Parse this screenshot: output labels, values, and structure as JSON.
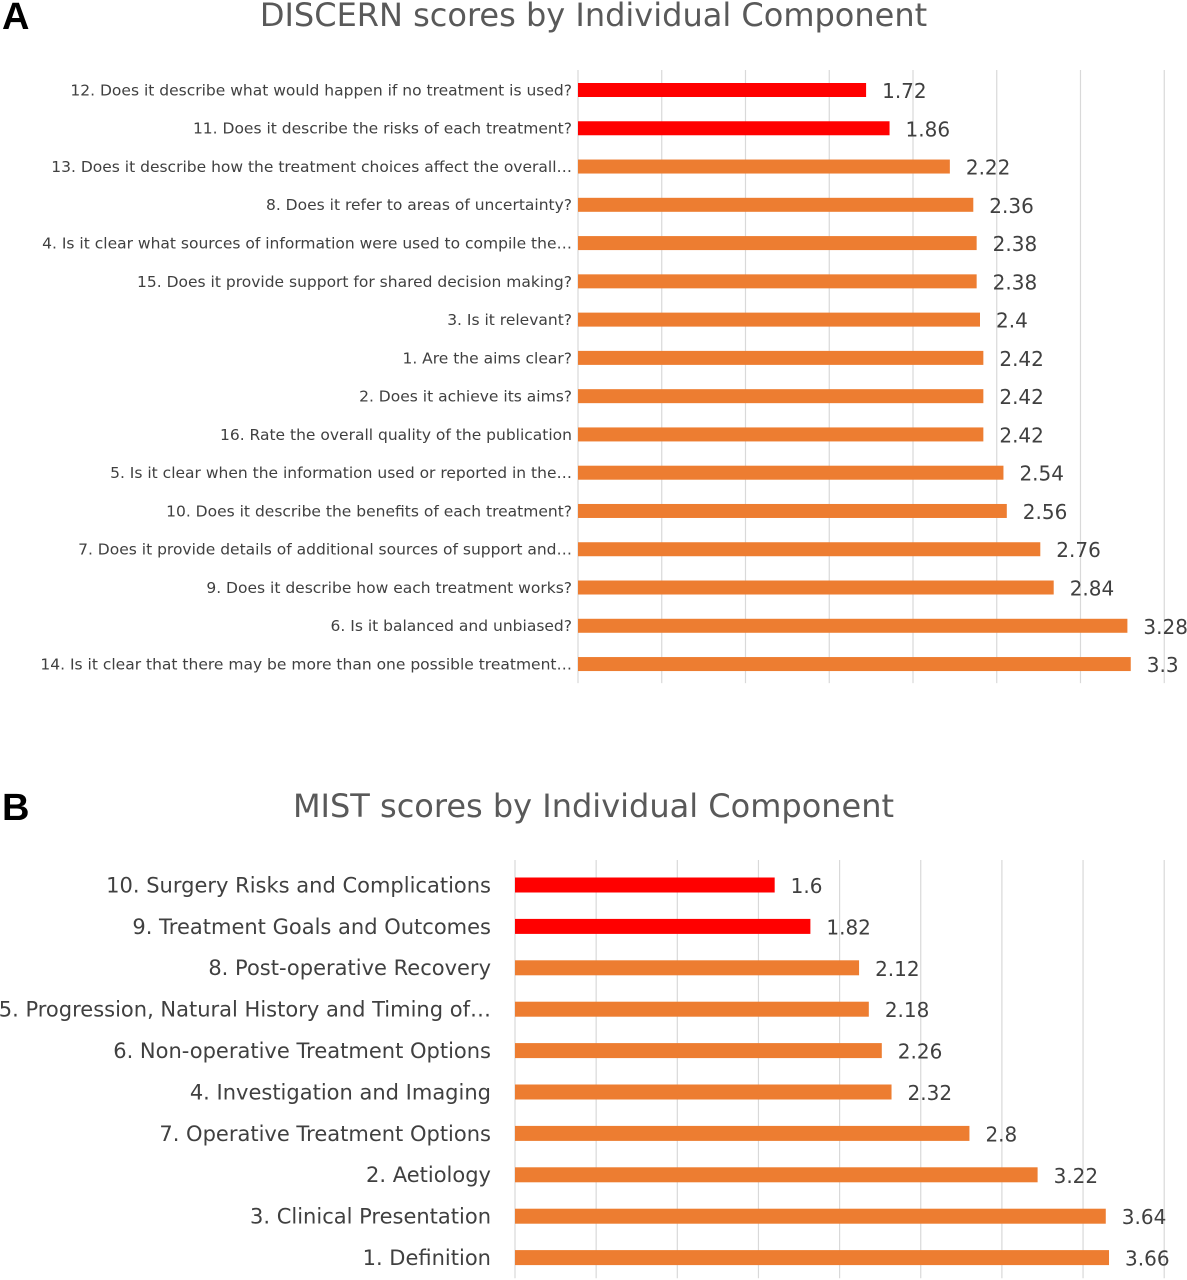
{
  "chart_data": [
    {
      "panel": "A",
      "type": "bar",
      "orientation": "horizontal",
      "title": "DISCERN scores by Individual Component",
      "categories": [
        "12. Does it describe what would happen if no treatment is used?",
        "11. Does it describe the risks of each treatment?",
        "13. Does it describe how the treatment choices affect the overall…",
        "8. Does it refer to areas of uncertainty?",
        "4. Is it clear what sources of information were used to compile the…",
        "15. Does it provide support for shared decision making?",
        "3. Is it relevant?",
        "1. Are the aims clear?",
        "2. Does it achieve its aims?",
        "16. Rate the overall quality of the publication",
        "5. Is it clear when the information used or reported in the…",
        "10. Does it describe the benefits of each treatment?",
        "7. Does it provide details of additional sources of support and…",
        "9. Does it describe how each treatment works?",
        "6. Is it balanced and unbiased?",
        "14. Is it clear that there may be more than one possible treatment…"
      ],
      "values": [
        1.72,
        1.86,
        2.22,
        2.36,
        2.38,
        2.38,
        2.4,
        2.42,
        2.42,
        2.42,
        2.54,
        2.56,
        2.76,
        2.84,
        3.28,
        3.3
      ],
      "value_labels": [
        "1.72",
        "1.86",
        "2.22",
        "2.36",
        "2.38",
        "2.38",
        "2.4",
        "2.42",
        "2.42",
        "2.42",
        "2.54",
        "2.56",
        "2.76",
        "2.84",
        "3.28",
        "3.3"
      ],
      "highlight_count": 2,
      "xlim": [
        0,
        3.6
      ],
      "grid_step": 0.5,
      "grid": true,
      "colors": {
        "highlight": "#ff0000",
        "default": "#ed7d31",
        "grid": "#d9d9d9"
      }
    },
    {
      "panel": "B",
      "type": "bar",
      "orientation": "horizontal",
      "title": "MIST scores by Individual Component",
      "categories": [
        "10. Surgery Risks and Complications",
        "9. Treatment Goals and Outcomes",
        "8. Post-operative Recovery",
        "5. Progression, Natural History and Timing of…",
        "6. Non-operative Treatment Options",
        "4. Investigation and Imaging",
        "7. Operative Treatment Options",
        "2. Aetiology",
        "3. Clinical Presentation",
        "1. Definition"
      ],
      "values": [
        1.6,
        1.82,
        2.12,
        2.18,
        2.26,
        2.32,
        2.8,
        3.22,
        3.64,
        3.66
      ],
      "value_labels": [
        "1.6",
        "1.82",
        "2.12",
        "2.18",
        "2.26",
        "2.32",
        "2.8",
        "3.22",
        "3.64",
        "3.66"
      ],
      "highlight_count": 2,
      "xlim": [
        0,
        4
      ],
      "grid_step": 0.5,
      "grid": true,
      "colors": {
        "highlight": "#ff0000",
        "default": "#ed7d31",
        "grid": "#d9d9d9"
      }
    }
  ]
}
